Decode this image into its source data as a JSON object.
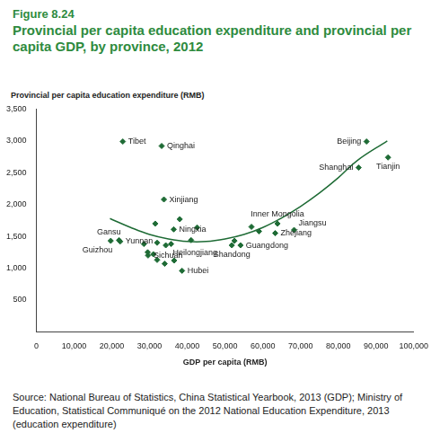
{
  "chart_data": {
    "type": "scatter",
    "subtitle": "Figure 8.24",
    "title": "Provincial per capita education expenditure and provincial per capita GDP, by province, 2012",
    "y_label": "Provincial per capita education expenditure (RMB)",
    "x_label": "GDP per capita (RMB)",
    "annotations": [
      "Source: National Bureau of Statistics, China Statistical Yearbook, 2013 (GDP); Ministry of Education, Statistical Communiqué on the 2012 National Education Expenditure, 2013 (education expenditure)"
    ],
    "xlim": [
      0,
      100000
    ],
    "xticks": [
      0,
      {
        "value": 10000,
        "label": "10,000"
      },
      {
        "value": 20000,
        "label": "20,000"
      },
      {
        "value": 30000,
        "label": "30,000"
      },
      {
        "value": 40000,
        "label": "40,000"
      },
      {
        "value": 50000,
        "label": "50,000"
      },
      {
        "value": 60000,
        "label": "60,000"
      },
      {
        "value": 70000,
        "label": "70,000"
      },
      {
        "value": 80000,
        "label": "80,000"
      },
      {
        "value": 90000,
        "label": "90,000"
      },
      {
        "value": 100000,
        "label": "100,000"
      }
    ],
    "ylim": [
      0,
      3500
    ],
    "yticks": [
      500,
      {
        "value": 1000,
        "label": "1,000"
      },
      {
        "value": 1500,
        "label": "1,500"
      },
      {
        "value": 2000,
        "label": "2,000"
      },
      {
        "value": 2500,
        "label": "2,500"
      },
      {
        "value": 3000,
        "label": "3,000"
      },
      {
        "value": 3500,
        "label": "3,500"
      }
    ],
    "grid": false,
    "series": [
      {
        "type": "scatter",
        "color": "#1e6b35",
        "marker": "diamond",
        "x": [
          22900,
          33200,
          87500,
          85400,
          93200,
          33800,
          63900,
          68300,
          63300,
          54100,
          51800,
          35700,
          36400,
          38600,
          21900,
          22200,
          19700,
          29600,
          31500,
          38000,
          42600,
          28500,
          32000,
          34300,
          29500,
          31000,
          32000,
          34000,
          36500,
          41000,
          52500,
          57000,
          59000
        ],
        "values": [
          2990,
          2920,
          2990,
          2580,
          2740,
          2080,
          1700,
          1600,
          1550,
          1360,
          1360,
          1380,
          1610,
          960,
          1440,
          1420,
          1430,
          1200,
          1700,
          1770,
          1640,
          1380,
          1400,
          1360,
          1250,
          1220,
          1130,
          1070,
          1120,
          1440,
          1430,
          1650,
          1580
        ],
        "labels": [
          "Tibet",
          "Qinghai",
          "Beijing",
          "Shanghai",
          "Tianjin",
          "Xinjiang",
          "Inner Mongolia",
          "Jiangsu",
          "Zhejiang",
          "Guangdong",
          "Shandong",
          "Heilongjiang",
          "Ningxia",
          "Hubei",
          "Gansu",
          "Yunnan",
          "Guizhou",
          "Sichuan",
          null,
          null,
          null,
          null,
          null,
          null,
          null,
          null,
          null,
          null,
          null,
          null,
          null,
          null,
          null
        ]
      },
      {
        "type": "line",
        "color": "#1e6b35",
        "line_style": "solid",
        "x": [
          19500,
          25000,
          30000,
          35000,
          40000,
          45000,
          50000,
          55000,
          60000,
          65000,
          70000,
          75000,
          80000,
          85000,
          93000
        ],
        "values": [
          1780,
          1640,
          1530,
          1460,
          1420,
          1420,
          1460,
          1530,
          1640,
          1790,
          1970,
          2180,
          2420,
          2690,
          3000
        ]
      }
    ]
  }
}
